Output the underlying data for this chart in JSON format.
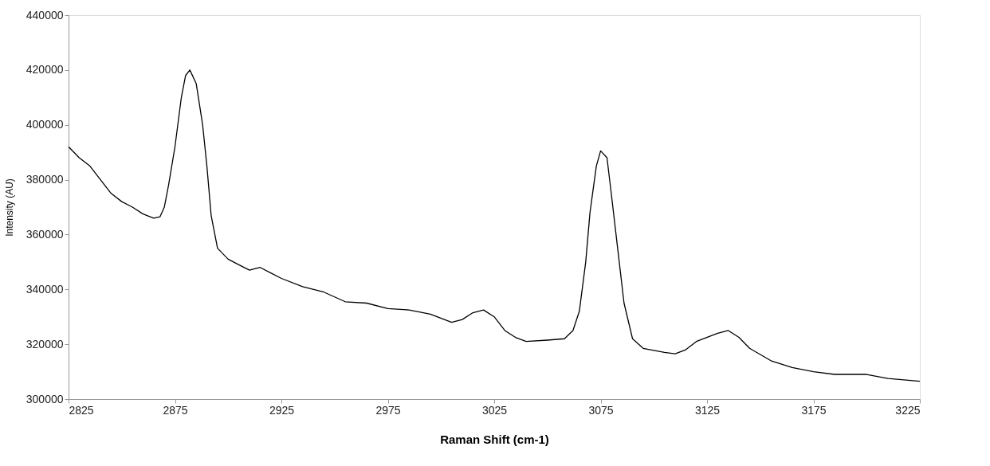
{
  "chart_data": {
    "type": "line",
    "xlabel": "Raman Shift (cm-1)",
    "ylabel": "Intensity (AU)",
    "xlim": [
      2825,
      3225
    ],
    "xticks": [
      2825,
      2875,
      2925,
      2975,
      3025,
      3075,
      3125,
      3175,
      3225
    ],
    "ylim": [
      300000,
      440000
    ],
    "yticks": [
      300000,
      320000,
      340000,
      360000,
      380000,
      400000,
      420000,
      440000
    ],
    "grid": false,
    "legend": false,
    "marker": "none",
    "line_style": "solid",
    "x": [
      2825,
      2830,
      2835,
      2840,
      2845,
      2850,
      2855,
      2860,
      2865,
      2868,
      2870,
      2872,
      2875,
      2878,
      2880,
      2882,
      2885,
      2888,
      2890,
      2892,
      2895,
      2900,
      2905,
      2910,
      2915,
      2920,
      2925,
      2935,
      2945,
      2955,
      2965,
      2975,
      2985,
      2995,
      3005,
      3010,
      3015,
      3020,
      3025,
      3030,
      3035,
      3040,
      3050,
      3058,
      3062,
      3065,
      3068,
      3070,
      3073,
      3075,
      3078,
      3080,
      3083,
      3086,
      3090,
      3095,
      3105,
      3110,
      3115,
      3120,
      3130,
      3135,
      3140,
      3145,
      3155,
      3165,
      3175,
      3185,
      3200,
      3210,
      3225
    ],
    "series": [
      {
        "color": "#000000",
        "values": [
          392000,
          388000,
          385000,
          380000,
          375000,
          372000,
          370000,
          367500,
          366000,
          366500,
          370000,
          378000,
          392000,
          410000,
          418000,
          420000,
          415000,
          400000,
          385000,
          367000,
          355000,
          351000,
          349000,
          347000,
          348000,
          346000,
          344000,
          341000,
          339000,
          335500,
          335000,
          333000,
          332500,
          331000,
          328000,
          329000,
          331500,
          332500,
          330000,
          325000,
          322500,
          321000,
          321500,
          322000,
          325000,
          332000,
          350000,
          368000,
          385000,
          390500,
          388000,
          375000,
          355000,
          335000,
          322000,
          318500,
          317000,
          316500,
          318000,
          321000,
          324000,
          325000,
          322500,
          318500,
          314000,
          311500,
          310000,
          309000,
          309000,
          307500,
          306500
        ]
      }
    ]
  }
}
